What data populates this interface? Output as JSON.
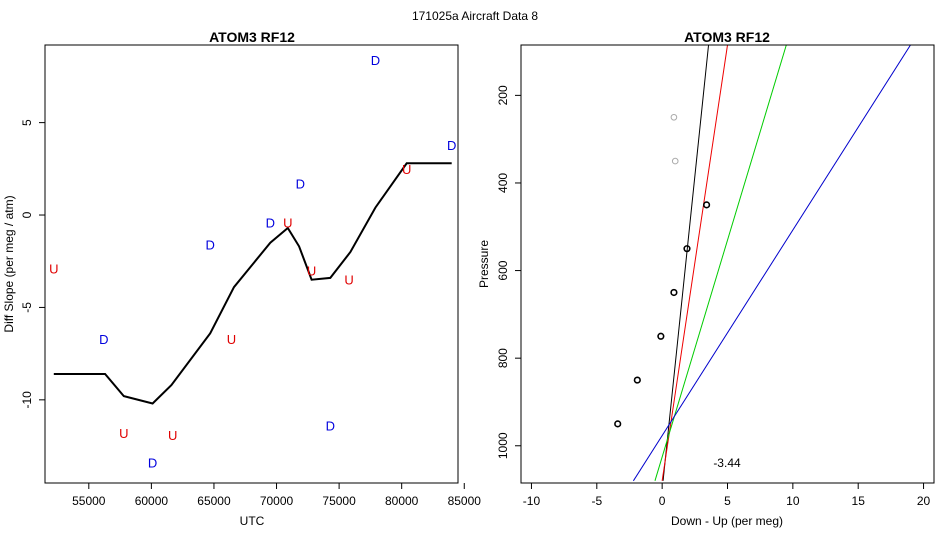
{
  "suptitle": "171025a   Aircraft Data 8",
  "chart_data": [
    {
      "type": "scatter",
      "title": "ATOM3 RF12",
      "xlabel": "UTC",
      "ylabel": "Diff Slope (per meg / atm)",
      "xlim": [
        51500,
        84500
      ],
      "ylim": [
        -14.5,
        9.2
      ],
      "xticks": [
        55000,
        60000,
        65000,
        70000,
        75000,
        80000,
        85000
      ],
      "yticks": [
        -10,
        -5,
        0,
        5
      ],
      "grid": false,
      "line": {
        "color": "#000000",
        "x": [
          52200,
          56300,
          57800,
          60100,
          61600,
          64700,
          66600,
          69500,
          70900,
          71800,
          72800,
          74300,
          75900,
          77900,
          80400,
          84000
        ],
        "y": [
          -8.6,
          -8.6,
          -9.8,
          -10.2,
          -9.2,
          -6.4,
          -3.9,
          -1.5,
          -0.7,
          -1.7,
          -3.5,
          -3.4,
          -2.0,
          0.4,
          2.8,
          2.8
        ]
      },
      "markers": [
        {
          "label": "U",
          "color": "#e00000",
          "x": [
            52200,
            57800,
            61700,
            66400,
            70900,
            72800,
            75800,
            80400
          ],
          "y": [
            -2.9,
            -11.8,
            -11.9,
            -6.7,
            -0.4,
            -3.0,
            -3.5,
            2.5
          ]
        },
        {
          "label": "D",
          "color": "#0000dd",
          "x": [
            56200,
            60100,
            64700,
            69500,
            71900,
            74300,
            77900,
            84000
          ],
          "y": [
            -6.7,
            -13.4,
            -1.6,
            -0.4,
            1.7,
            -11.4,
            8.4,
            3.8
          ]
        }
      ]
    },
    {
      "type": "scatter",
      "title": "ATOM3 RF12",
      "xlabel": "Down - Up (per meg)",
      "ylabel": "Pressure",
      "xlim": [
        -10.8,
        20.8
      ],
      "ylim": [
        1085,
        85
      ],
      "xticks": [
        -10,
        -5,
        0,
        5,
        10,
        15,
        20
      ],
      "yticks": [
        200,
        400,
        600,
        800,
        1000
      ],
      "grid": false,
      "annotation": "-3.44",
      "points_black": {
        "x": [
          -3.4,
          -1.9,
          -0.1,
          0.9,
          1.9,
          3.4
        ],
        "y": [
          950,
          850,
          750,
          650,
          550,
          450
        ]
      },
      "points_gray": {
        "x": [
          0.9,
          1.0
        ],
        "y": [
          250,
          350
        ]
      },
      "lines": [
        {
          "color": "#000000",
          "p1": [
            0.07,
            1080
          ],
          "p2": [
            3.55,
            85
          ]
        },
        {
          "color": "#ee0000",
          "p1": [
            0.0,
            1080
          ],
          "p2": [
            5.0,
            85
          ]
        },
        {
          "color": "#00cc00",
          "p1": [
            -0.55,
            1080
          ],
          "p2": [
            9.5,
            85
          ]
        },
        {
          "color": "#0000cc",
          "p1": [
            -2.2,
            1080
          ],
          "p2": [
            19.0,
            85
          ]
        }
      ]
    }
  ]
}
